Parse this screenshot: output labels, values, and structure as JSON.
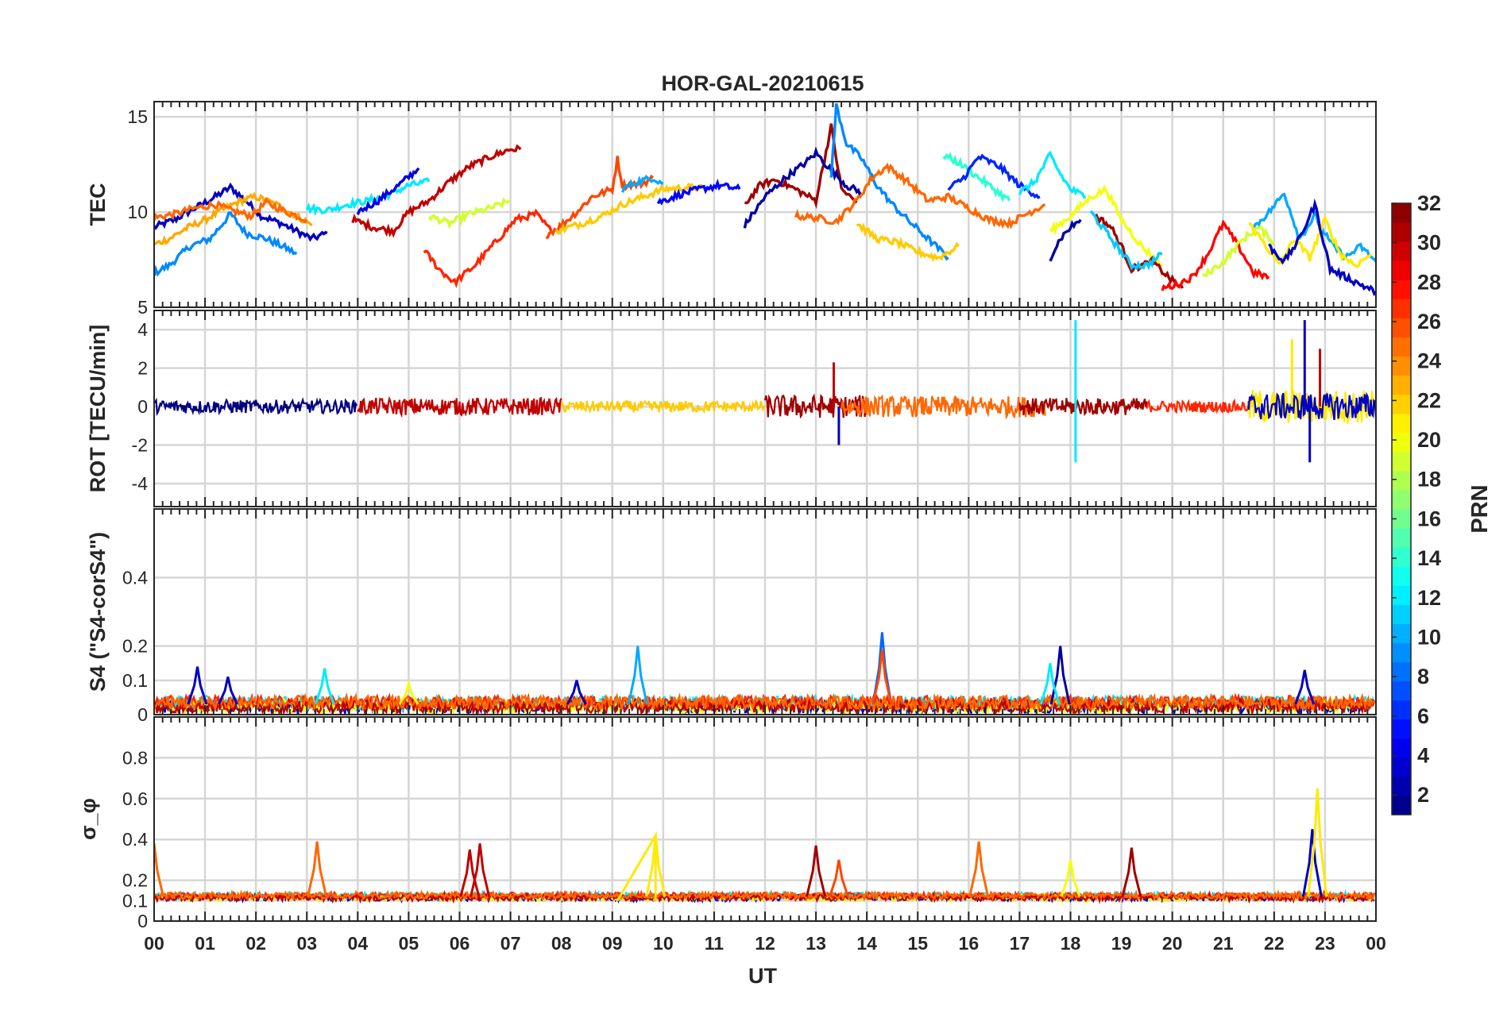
{
  "chart_data": {
    "type": "line",
    "title": "HOR-GAL-20210615",
    "xlabel": "UT",
    "x_unit": "hour",
    "x_tick_labels": [
      "00",
      "01",
      "02",
      "03",
      "04",
      "05",
      "06",
      "07",
      "08",
      "09",
      "10",
      "11",
      "12",
      "13",
      "14",
      "15",
      "16",
      "17",
      "18",
      "19",
      "20",
      "21",
      "22",
      "23",
      "00"
    ],
    "xlim": [
      0,
      24
    ],
    "grid": true,
    "panels": [
      {
        "ylabel": "TEC",
        "ylim": [
          5,
          15.8
        ],
        "yticks": [
          5,
          10,
          15
        ],
        "series_description": "TEC per Galileo PRN, colored by PRN",
        "series": [
          {
            "prn": 3,
            "x": [
              0.0,
              0.4,
              0.8,
              1.2,
              1.5,
              1.8,
              2.1,
              2.5,
              2.8,
              3.1,
              3.4
            ],
            "y": [
              9.2,
              9.6,
              10.2,
              10.8,
              11.3,
              10.6,
              9.8,
              9.4,
              9.0,
              8.6,
              8.9
            ]
          },
          {
            "prn": 9,
            "x": [
              0.0,
              0.3,
              0.7,
              1.1,
              1.5,
              1.8,
              2.2,
              2.6,
              2.8
            ],
            "y": [
              6.8,
              7.2,
              8.2,
              8.6,
              9.9,
              8.9,
              8.6,
              8.1,
              7.8
            ]
          },
          {
            "prn": 23,
            "x": [
              0.0,
              0.3,
              0.6,
              1.0,
              1.4,
              1.7,
              2.0,
              2.4,
              2.8,
              3.1
            ],
            "y": [
              8.3,
              8.6,
              9.1,
              9.6,
              10.2,
              10.6,
              10.8,
              10.4,
              9.8,
              9.3
            ]
          },
          {
            "prn": 25,
            "x": [
              0.0,
              0.4,
              0.8,
              1.2,
              1.5,
              1.9,
              2.2,
              2.6,
              3.0
            ],
            "y": [
              9.7,
              9.9,
              10.2,
              10.4,
              10.1,
              9.8,
              10.5,
              10.0,
              9.6
            ]
          },
          {
            "prn": 12,
            "x": [
              3.0,
              3.4,
              3.8,
              4.2,
              4.6,
              5.0,
              5.4
            ],
            "y": [
              10.2,
              10.1,
              10.4,
              10.6,
              10.9,
              11.4,
              11.6
            ]
          },
          {
            "prn": 4,
            "x": [
              4.0,
              4.4,
              4.8,
              5.2
            ],
            "y": [
              10.0,
              10.6,
              11.4,
              12.3
            ]
          },
          {
            "prn": 30,
            "x": [
              3.9,
              4.3,
              4.7,
              5.0,
              5.4,
              5.8,
              6.2,
              6.6,
              7.0,
              7.2
            ],
            "y": [
              9.6,
              9.2,
              9.0,
              10.0,
              10.6,
              11.6,
              12.4,
              12.9,
              13.3,
              13.3
            ]
          },
          {
            "prn": 19,
            "x": [
              5.4,
              5.8,
              6.2,
              6.6,
              7.0
            ],
            "y": [
              9.8,
              9.4,
              9.9,
              10.2,
              10.6
            ]
          },
          {
            "prn": 27,
            "x": [
              5.3,
              5.6,
              5.9,
              6.3,
              6.7,
              7.1,
              7.5,
              7.8
            ],
            "y": [
              8.0,
              7.0,
              6.3,
              7.2,
              8.4,
              9.6,
              9.9,
              9.0
            ]
          },
          {
            "prn": 26,
            "x": [
              7.7,
              8.0,
              8.3,
              8.6,
              9.0,
              9.1,
              9.2,
              9.6,
              9.8
            ],
            "y": [
              8.8,
              9.3,
              10.0,
              10.8,
              11.2,
              12.8,
              11.4,
              11.5,
              11.8
            ]
          },
          {
            "prn": 22,
            "x": [
              7.9,
              8.4,
              8.8,
              9.2,
              9.6,
              10.0,
              10.5,
              11.0
            ],
            "y": [
              9.0,
              9.4,
              9.8,
              10.4,
              10.8,
              11.2,
              11.3,
              11.2
            ]
          },
          {
            "prn": 10,
            "x": [
              9.2,
              9.5,
              9.8,
              10.0
            ],
            "y": [
              11.2,
              11.6,
              11.8,
              11.5
            ]
          },
          {
            "prn": 5,
            "x": [
              9.9,
              10.3,
              10.7,
              11.1,
              11.5
            ],
            "y": [
              10.5,
              10.9,
              11.2,
              11.4,
              11.2
            ]
          },
          {
            "prn": 31,
            "x": [
              11.6,
              11.9,
              12.2,
              12.6,
              13.0,
              13.3,
              13.5,
              13.8
            ],
            "y": [
              10.4,
              11.4,
              11.7,
              11.2,
              10.6,
              14.5,
              11.2,
              10.5
            ]
          },
          {
            "prn": 2,
            "x": [
              11.6,
              12.0,
              12.4,
              12.8,
              13.0,
              13.3,
              13.6,
              13.9
            ],
            "y": [
              9.3,
              10.8,
              11.8,
              12.6,
              13.1,
              12.2,
              11.4,
              11.0
            ]
          },
          {
            "prn": 9,
            "x": [
              13.3,
              13.4,
              13.6,
              13.9,
              14.2,
              14.5,
              14.8,
              15.2,
              15.6
            ],
            "y": [
              11.8,
              15.6,
              13.6,
              12.8,
              11.4,
              10.4,
              9.6,
              8.6,
              7.6
            ]
          },
          {
            "prn": 25,
            "x": [
              12.6,
              13.0,
              13.4,
              13.8,
              14.1,
              14.4,
              14.8,
              15.2,
              15.6,
              16.0,
              16.4,
              16.8,
              17.2,
              17.5
            ],
            "y": [
              9.8,
              9.7,
              9.5,
              10.6,
              11.8,
              12.4,
              11.6,
              10.6,
              10.8,
              10.2,
              9.6,
              9.4,
              10.0,
              10.4
            ]
          },
          {
            "prn": 22,
            "x": [
              13.8,
              14.2,
              14.6,
              15.0,
              15.4,
              15.8
            ],
            "y": [
              9.4,
              8.6,
              8.4,
              7.9,
              7.6,
              8.2
            ]
          },
          {
            "prn": 14,
            "x": [
              15.5,
              15.8,
              16.1,
              16.5,
              16.8
            ],
            "y": [
              13.0,
              12.6,
              12.0,
              11.2,
              10.6
            ]
          },
          {
            "prn": 6,
            "x": [
              15.6,
              15.9,
              16.2,
              16.6,
              17.0,
              17.4
            ],
            "y": [
              11.2,
              11.8,
              12.9,
              12.4,
              11.4,
              10.8
            ]
          },
          {
            "prn": 12,
            "x": [
              17.0,
              17.3,
              17.6,
              17.8,
              18.0,
              18.3
            ],
            "y": [
              11.0,
              11.6,
              13.0,
              12.0,
              11.2,
              10.8
            ]
          },
          {
            "prn": 2,
            "x": [
              17.6,
              17.8,
              18.0,
              18.2
            ],
            "y": [
              7.6,
              8.6,
              9.2,
              9.6
            ]
          },
          {
            "prn": 20,
            "x": [
              17.6,
              18.0,
              18.4,
              18.7,
              19.0,
              19.4,
              19.8
            ],
            "y": [
              9.0,
              9.8,
              10.8,
              11.2,
              9.6,
              8.2,
              7.2
            ]
          },
          {
            "prn": 31,
            "x": [
              18.5,
              18.8,
              19.0,
              19.2,
              19.6,
              20.0,
              20.2
            ],
            "y": [
              9.8,
              9.2,
              8.2,
              7.0,
              7.4,
              6.4,
              6.0
            ]
          },
          {
            "prn": 11,
            "x": [
              18.4,
              18.8,
              19.2,
              19.5,
              19.8
            ],
            "y": [
              10.0,
              8.6,
              7.2,
              7.2,
              7.8
            ]
          },
          {
            "prn": 28,
            "x": [
              19.8,
              20.1,
              20.4,
              20.7,
              21.0,
              21.3,
              21.6,
              21.9
            ],
            "y": [
              6.0,
              6.2,
              6.6,
              7.8,
              9.4,
              8.2,
              6.8,
              6.6
            ]
          },
          {
            "prn": 19,
            "x": [
              20.6,
              21.0,
              21.4,
              21.7,
              22.0
            ],
            "y": [
              6.6,
              7.4,
              8.6,
              9.2,
              8.4
            ]
          },
          {
            "prn": 10,
            "x": [
              21.6,
              21.9,
              22.2,
              22.5,
              22.8,
              23.1,
              23.4,
              23.7,
              24.0
            ],
            "y": [
              9.2,
              10.0,
              11.0,
              8.6,
              9.8,
              8.4,
              7.6,
              8.2,
              7.4
            ]
          },
          {
            "prn": 21,
            "x": [
              21.5,
              21.8,
              22.1,
              22.4,
              22.7,
              23.0,
              23.3,
              23.6,
              23.9
            ],
            "y": [
              9.4,
              8.4,
              7.2,
              8.6,
              7.6,
              9.6,
              7.8,
              7.2,
              7.8
            ]
          },
          {
            "prn": 3,
            "x": [
              21.9,
              22.2,
              22.5,
              22.8,
              23.1,
              23.4,
              23.7,
              24.0
            ],
            "y": [
              8.2,
              7.4,
              8.6,
              10.4,
              7.0,
              6.6,
              6.2,
              5.8
            ]
          }
        ]
      },
      {
        "ylabel": "ROT [TECU/min]",
        "ylim": [
          -5.2,
          5
        ],
        "yticks": [
          -4,
          -2,
          0,
          2,
          4
        ],
        "series_description": "ROT noise envelope with spikes, colored by PRN",
        "bursts": [
          {
            "t": 13.35,
            "amp": 2.3,
            "prn": 30
          },
          {
            "t": 13.45,
            "amp": -2.0,
            "prn": 3
          },
          {
            "t": 18.1,
            "amp": 4.5,
            "prn": 12
          },
          {
            "t": 18.1,
            "amp": -2.9,
            "prn": 12
          },
          {
            "t": 22.35,
            "amp": 3.5,
            "prn": 21
          },
          {
            "t": 22.6,
            "amp": 4.5,
            "prn": 3
          },
          {
            "t": 22.7,
            "amp": -2.9,
            "prn": 3
          },
          {
            "t": 22.9,
            "amp": 3.0,
            "prn": 30
          }
        ]
      },
      {
        "ylabel": "S4 (\"S4-corS4\")",
        "ylim": [
          0,
          0.6
        ],
        "yticks": [
          0,
          0.1,
          0.2,
          0.4
        ],
        "series_description": "S4 per PRN, colored by PRN",
        "peaks": [
          {
            "t": 0.85,
            "v": 0.14,
            "prn": 3
          },
          {
            "t": 1.45,
            "v": 0.11,
            "prn": 3
          },
          {
            "t": 3.35,
            "v": 0.135,
            "prn": 12
          },
          {
            "t": 5.0,
            "v": 0.09,
            "prn": 20
          },
          {
            "t": 8.3,
            "v": 0.1,
            "prn": 3
          },
          {
            "t": 9.5,
            "v": 0.2,
            "prn": 10
          },
          {
            "t": 14.3,
            "v": 0.24,
            "prn": 8
          },
          {
            "t": 14.3,
            "v": 0.19,
            "prn": 26
          },
          {
            "t": 17.8,
            "v": 0.2,
            "prn": 2
          },
          {
            "t": 17.6,
            "v": 0.15,
            "prn": 12
          },
          {
            "t": 22.6,
            "v": 0.13,
            "prn": 3
          }
        ]
      },
      {
        "ylabel": "σ_φ",
        "ylim": [
          0,
          1.0
        ],
        "yticks": [
          0,
          0.1,
          0.2,
          0.4,
          0.6,
          0.8
        ],
        "series_description": "phase scintillation index per PRN, colored by PRN",
        "peaks": [
          {
            "t": 0.0,
            "v": 0.38,
            "prn": 25
          },
          {
            "t": 3.2,
            "v": 0.39,
            "prn": 25
          },
          {
            "t": 6.2,
            "v": 0.35,
            "prn": 30
          },
          {
            "t": 6.4,
            "v": 0.38,
            "prn": 30
          },
          {
            "t": 9.85,
            "v": 0.42,
            "prn": 21
          },
          {
            "t": 13.0,
            "v": 0.37,
            "prn": 31
          },
          {
            "t": 13.45,
            "v": 0.3,
            "prn": 26
          },
          {
            "t": 16.2,
            "v": 0.39,
            "prn": 25
          },
          {
            "t": 18.0,
            "v": 0.3,
            "prn": 20
          },
          {
            "t": 19.2,
            "v": 0.36,
            "prn": 31
          },
          {
            "t": 22.75,
            "v": 0.45,
            "prn": 3
          },
          {
            "t": 22.85,
            "v": 0.65,
            "prn": 21
          }
        ],
        "ramp": {
          "prn": 21,
          "x": [
            9.1,
            9.85,
            9.85
          ],
          "y": [
            0.1,
            0.42,
            0.1
          ]
        }
      }
    ],
    "colorbar": {
      "label": "PRN",
      "colormap": "jet",
      "range": [
        1,
        32
      ],
      "ticks": [
        2,
        4,
        6,
        8,
        10,
        12,
        14,
        16,
        18,
        20,
        22,
        24,
        26,
        28,
        30,
        32
      ]
    }
  }
}
